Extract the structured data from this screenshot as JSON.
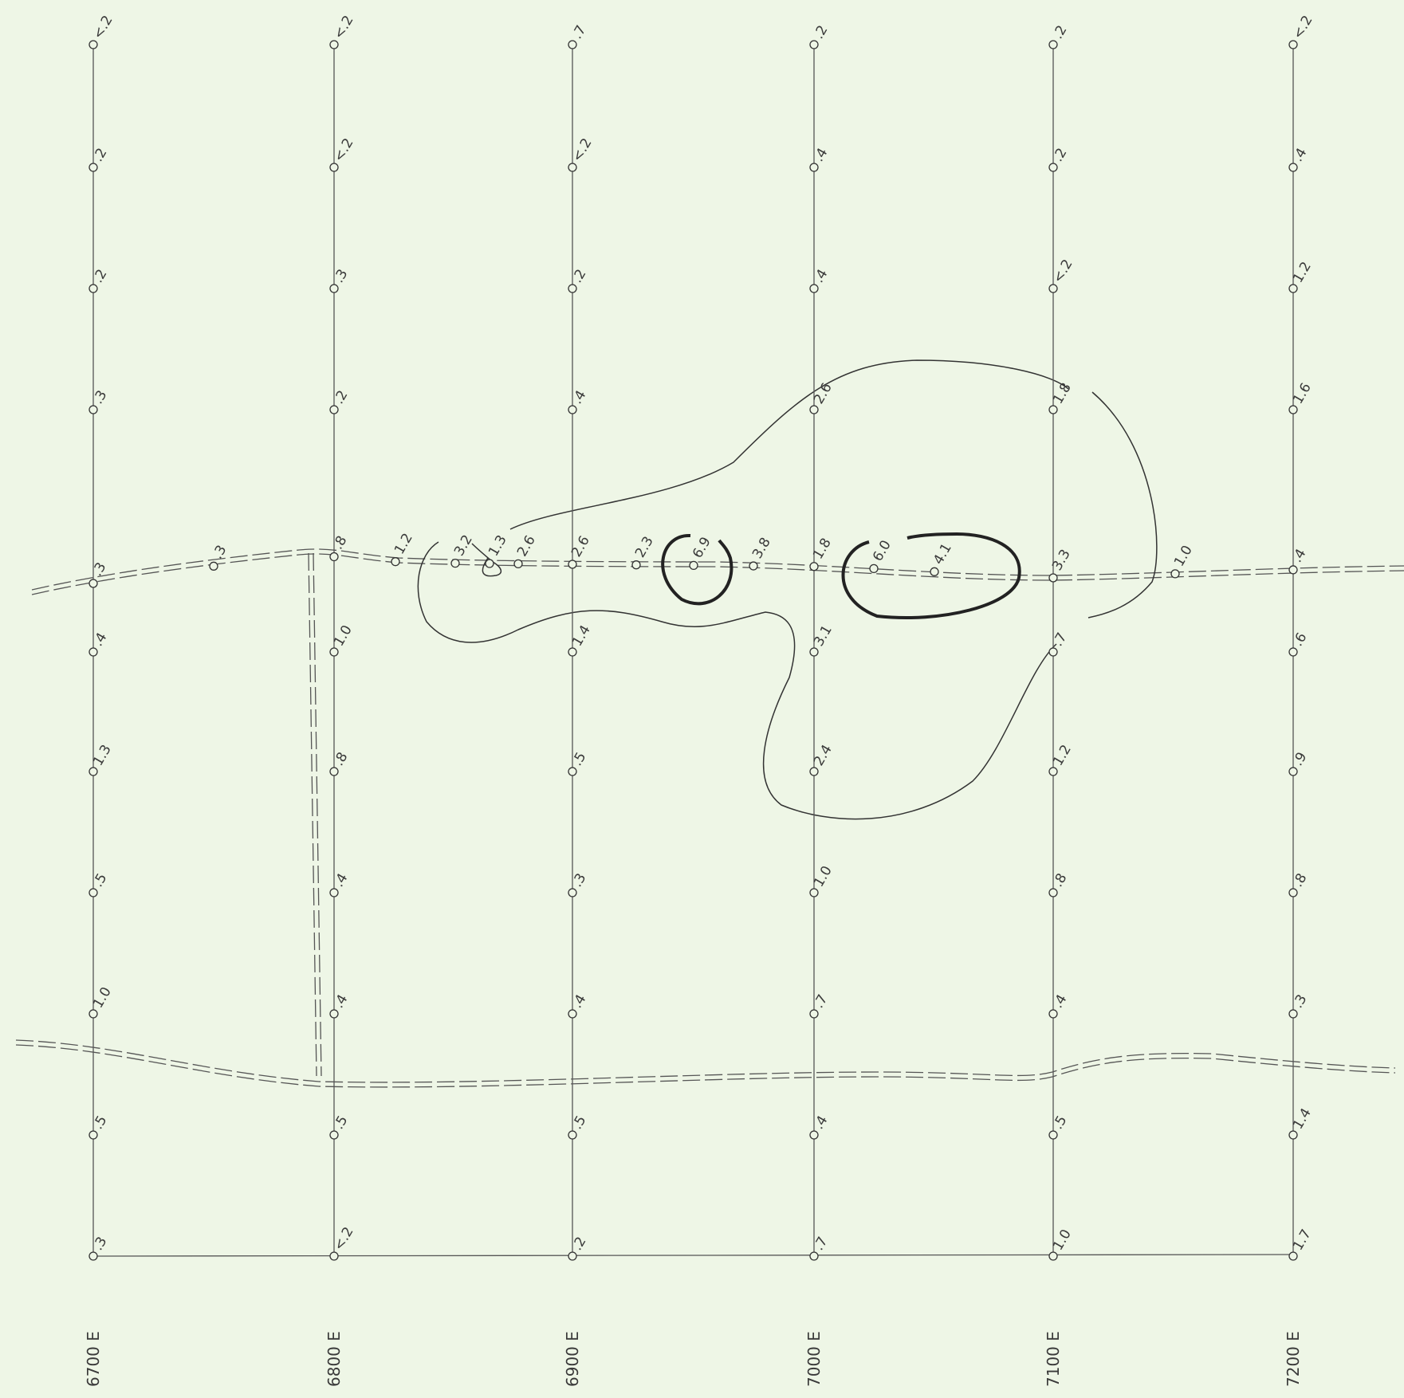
{
  "lines": [
    {
      "label": "6700 E",
      "values": [
        "<.2",
        ".2",
        ".2",
        ".3",
        ".4",
        "1.3",
        ".5",
        "1.0",
        ".5",
        ".3"
      ]
    },
    {
      "label": "6800 E",
      "values": [
        "<.2",
        "<.2",
        ".3",
        ".2",
        "1.0",
        ".8",
        ".4",
        ".4",
        ".5",
        "<.2"
      ]
    },
    {
      "label": "6900 E",
      "values": [
        ".7",
        "<.2",
        ".2",
        ".4",
        "1.4",
        ".5",
        ".3",
        ".4",
        ".5",
        ".2"
      ]
    },
    {
      "label": "7000 E",
      "values": [
        ".2",
        ".4",
        ".4",
        "2.6",
        "3.1",
        "2.4",
        "1.0",
        ".7",
        ".4",
        ".7"
      ]
    },
    {
      "label": "7100 E",
      "values": [
        ".2",
        ".2",
        "<.2",
        "1.8",
        ".7",
        "1.2",
        ".8",
        ".4",
        ".5",
        "1.0"
      ]
    },
    {
      "label": "7200 E",
      "values": [
        "<.2",
        ".4",
        "1.2",
        "1.6",
        ".6",
        ".9",
        ".8",
        ".3",
        "1.4",
        "1.7"
      ]
    }
  ],
  "baseline_values": [
    ".3",
    ".3",
    ".8",
    "1.2",
    "3.2",
    "1.3",
    "2.6",
    "2.6",
    "2.3",
    "6.9",
    "3.8",
    "1.8",
    "6.0",
    "4.1",
    "3.3",
    "1.0",
    ".4"
  ]
}
